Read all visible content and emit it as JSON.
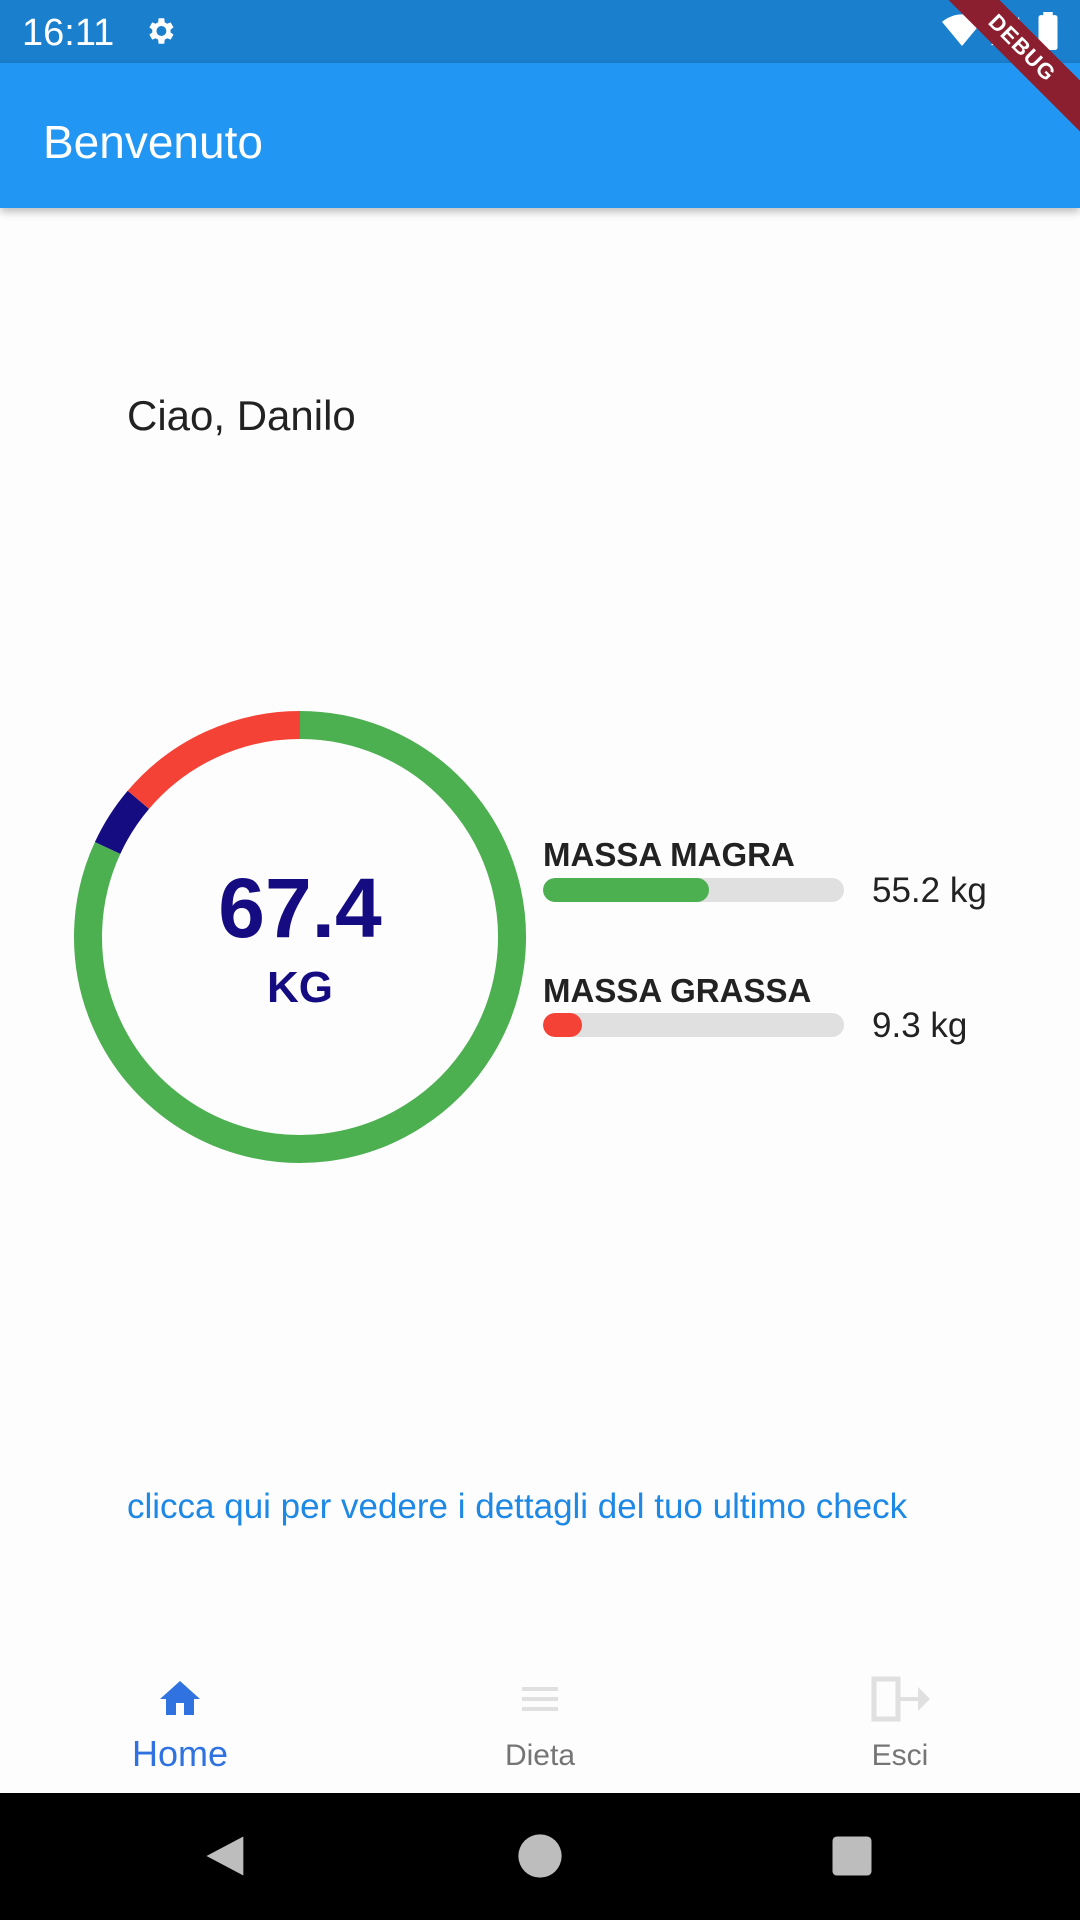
{
  "status_bar": {
    "time": "16:11",
    "icons": [
      "gear-icon",
      "wifi-icon",
      "signal-icon",
      "battery-icon"
    ]
  },
  "app_bar": {
    "title": "Benvenuto",
    "debug_badge": "DEBUG",
    "color": "#2196f3"
  },
  "greeting": "Ciao, Danilo",
  "weight": {
    "value": "67.4",
    "unit": "KG",
    "ring_segments": [
      {
        "name": "lean",
        "fraction": 0.819,
        "color": "#4caf50"
      },
      {
        "name": "other",
        "fraction": 0.043,
        "color": "#140c80"
      },
      {
        "name": "fat",
        "fraction": 0.138,
        "color": "#f44336"
      }
    ]
  },
  "stats": [
    {
      "label": "MASSA MAGRA",
      "value": "55.2 kg",
      "fraction": 0.55,
      "color": "#4caf50"
    },
    {
      "label": "MASSA GRASSA",
      "value": "9.3 kg",
      "fraction": 0.13,
      "color": "#f44336"
    }
  ],
  "details_link": "clicca qui per vedere i dettagli del tuo ultimo check",
  "bottom_nav": {
    "items": [
      {
        "label": "Home",
        "icon": "home-icon",
        "active": true
      },
      {
        "label": "Dieta",
        "icon": "menu-icon",
        "active": false
      },
      {
        "label": "Esci",
        "icon": "logout-icon",
        "active": false
      }
    ],
    "active_color": "#2f72e0"
  },
  "system_nav": [
    "back-icon",
    "home-circle-icon",
    "recents-icon"
  ]
}
